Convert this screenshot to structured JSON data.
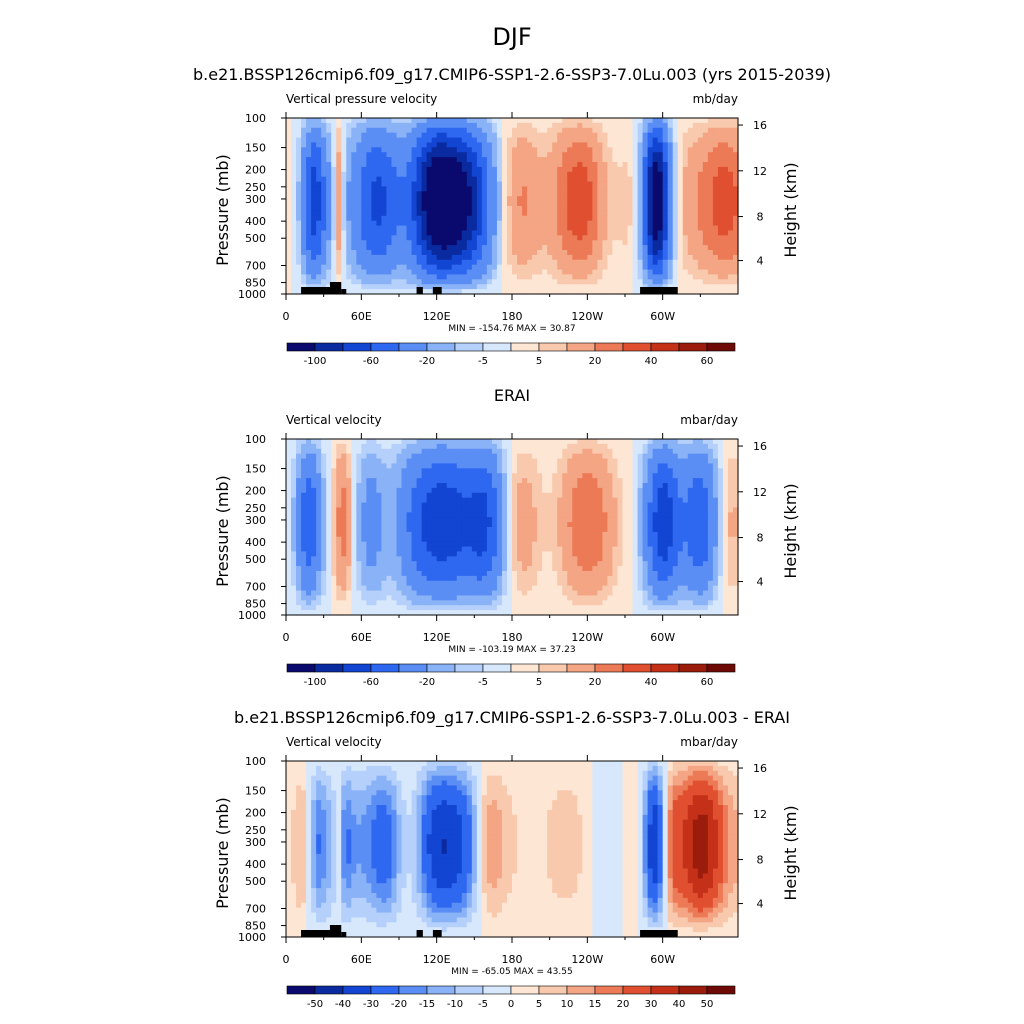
{
  "main_title": "DJF",
  "chart_data": [
    {
      "type": "heatmap",
      "title": "b.e21.BSSP126cmip6.f09_g17.CMIP6-SSP1-2.6-SSP3-7.0Lu.003 (yrs 2015-2039)",
      "left_label": "Vertical pressure velocity",
      "right_label": "mb/day",
      "ylabel": "Pressure (mb)",
      "ylabel_right": "Height (km)",
      "x_ticks": [
        "0",
        "60E",
        "120E",
        "180",
        "120W",
        "60W"
      ],
      "y_ticks": [
        "100",
        "150",
        "200",
        "250",
        "300",
        "400",
        "500",
        "700",
        "850",
        "1000"
      ],
      "y2_ticks": [
        "16",
        "12",
        "8",
        "4"
      ],
      "stats": "MIN = -154.76  MAX =  30.87",
      "colorbar_labels": [
        "-100",
        "-60",
        "-20",
        "-5",
        "5",
        "20",
        "40",
        "60"
      ],
      "colors": [
        "#0a0a6e",
        "#0a2aa0",
        "#1245d2",
        "#2f68f0",
        "#5a8ef5",
        "#8ab2f7",
        "#b5d0fa",
        "#d8e8fc",
        "#fde6d4",
        "#f9c9ae",
        "#f4a584",
        "#ed7a57",
        "#e05030",
        "#c43018",
        "#9c1c0c",
        "#6e0a06"
      ],
      "levels": [
        -100,
        -80,
        -60,
        -40,
        -20,
        -10,
        -5,
        0,
        5,
        10,
        20,
        30,
        40,
        50,
        60
      ],
      "xlim": [
        0,
        360
      ],
      "ylim": [
        1000,
        100
      ],
      "min": -154.76,
      "max": 30.87,
      "has_topography": true
    },
    {
      "type": "heatmap",
      "title": "ERAI",
      "left_label": "Vertical velocity",
      "right_label": "mbar/day",
      "ylabel": "Pressure (mb)",
      "ylabel_right": "Height (km)",
      "x_ticks": [
        "0",
        "60E",
        "120E",
        "180",
        "120W",
        "60W"
      ],
      "y_ticks": [
        "100",
        "150",
        "200",
        "250",
        "300",
        "400",
        "500",
        "700",
        "850",
        "1000"
      ],
      "y2_ticks": [
        "16",
        "12",
        "8",
        "4"
      ],
      "stats": "MIN = -103.19  MAX =  37.23",
      "colorbar_labels": [
        "-100",
        "-60",
        "-20",
        "-5",
        "5",
        "20",
        "40",
        "60"
      ],
      "colors": [
        "#0a0a6e",
        "#0a2aa0",
        "#1245d2",
        "#2f68f0",
        "#5a8ef5",
        "#8ab2f7",
        "#b5d0fa",
        "#d8e8fc",
        "#fde6d4",
        "#f9c9ae",
        "#f4a584",
        "#ed7a57",
        "#e05030",
        "#c43018",
        "#9c1c0c",
        "#6e0a06"
      ],
      "levels": [
        -100,
        -80,
        -60,
        -40,
        -20,
        -10,
        -5,
        0,
        5,
        10,
        20,
        30,
        40,
        50,
        60
      ],
      "xlim": [
        0,
        360
      ],
      "ylim": [
        1000,
        100
      ],
      "min": -103.19,
      "max": 37.23,
      "has_topography": false
    },
    {
      "type": "heatmap",
      "title": "b.e21.BSSP126cmip6.f09_g17.CMIP6-SSP1-2.6-SSP3-7.0Lu.003 - ERAI",
      "left_label": "Vertical velocity",
      "right_label": "mbar/day",
      "ylabel": "Pressure (mb)",
      "ylabel_right": "Height (km)",
      "x_ticks": [
        "0",
        "60E",
        "120E",
        "180",
        "120W",
        "60W"
      ],
      "y_ticks": [
        "100",
        "150",
        "200",
        "250",
        "300",
        "400",
        "500",
        "700",
        "850",
        "1000"
      ],
      "y2_ticks": [
        "16",
        "12",
        "8",
        "4"
      ],
      "stats": "MIN = -65.05  MAX =  43.55",
      "colorbar_labels": [
        "-50",
        "-40",
        "-30",
        "-20",
        "-15",
        "-10",
        "-5",
        "0",
        "5",
        "10",
        "15",
        "20",
        "30",
        "40",
        "50"
      ],
      "colors": [
        "#0a0a6e",
        "#0a2aa0",
        "#1245d2",
        "#2f68f0",
        "#5a8ef5",
        "#8ab2f7",
        "#b5d0fa",
        "#d8e8fc",
        "#fde6d4",
        "#f9c9ae",
        "#f4a584",
        "#ed7a57",
        "#e05030",
        "#c43018",
        "#9c1c0c",
        "#6e0a06"
      ],
      "levels": [
        -50,
        -40,
        -30,
        -20,
        -15,
        -10,
        -5,
        0,
        5,
        10,
        15,
        20,
        30,
        40,
        50
      ],
      "xlim": [
        0,
        360
      ],
      "ylim": [
        1000,
        100
      ],
      "min": -65.05,
      "max": 43.55,
      "has_topography": true
    }
  ]
}
